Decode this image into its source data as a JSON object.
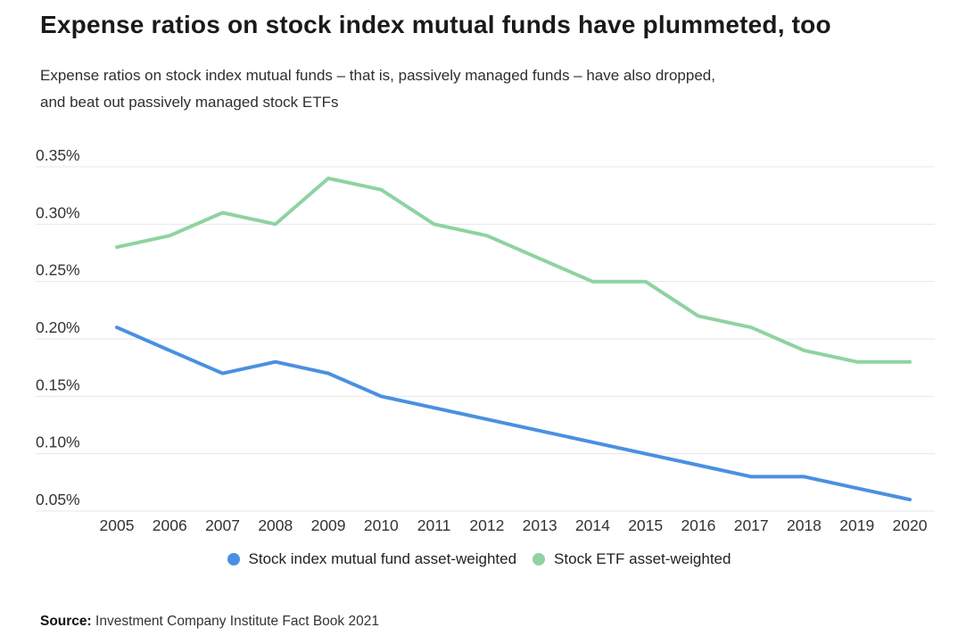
{
  "header": {
    "title": "Expense ratios on stock index mutual funds have plummeted, too",
    "subtitle": {
      "line1": "Expense ratios on stock index mutual funds – that is, passively managed funds – have also dropped,",
      "line2": "and beat out passively managed stock ETFs"
    }
  },
  "chart_data": {
    "type": "line",
    "title": "Expense ratios on stock index mutual funds have plummeted, too",
    "categories": [
      "2005",
      "2006",
      "2007",
      "2008",
      "2009",
      "2010",
      "2011",
      "2012",
      "2013",
      "2014",
      "2015",
      "2016",
      "2017",
      "2018",
      "2019",
      "2020"
    ],
    "series": [
      {
        "name": "Stock index mutual fund asset-weighted",
        "color": "#4a90e2",
        "values": [
          0.21,
          0.19,
          0.17,
          0.18,
          0.17,
          0.15,
          0.14,
          0.13,
          0.12,
          0.11,
          0.1,
          0.09,
          0.08,
          0.08,
          0.07,
          0.06
        ]
      },
      {
        "name": "Stock ETF asset-weighted",
        "color": "#8ed3a0",
        "values": [
          0.28,
          0.29,
          0.31,
          0.3,
          0.34,
          0.33,
          0.3,
          0.29,
          0.27,
          0.25,
          0.25,
          0.22,
          0.21,
          0.19,
          0.18,
          0.18
        ]
      }
    ],
    "xlabel": "",
    "ylabel": "",
    "ylim": [
      0.05,
      0.35
    ],
    "ytick_values": [
      0.35,
      0.3,
      0.25,
      0.2,
      0.15,
      0.1,
      0.05
    ],
    "ytick_labels": [
      "0.35%",
      "0.30%",
      "0.25%",
      "0.20%",
      "0.15%",
      "0.10%",
      "0.05%"
    ],
    "grid": "horizontal-only",
    "legend_position": "bottom",
    "value_unit": "percent"
  },
  "source": {
    "label": "Source:",
    "text": " Investment Company Institute Fact Book 2021"
  }
}
